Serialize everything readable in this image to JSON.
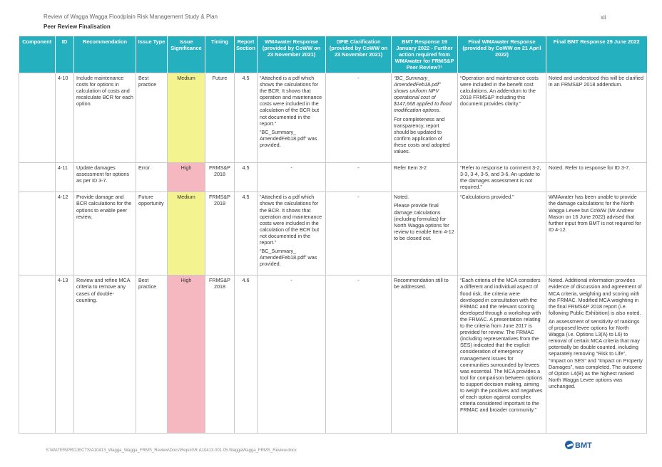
{
  "header": {
    "title": "Review of Wagga Wagga Floodplain Risk Management Study & Plan",
    "subtitle": "Peer Review Finalisation",
    "page_number": "xii"
  },
  "columns": [
    "Component",
    "ID",
    "Recommendation",
    "Issue Type",
    "Issue Significance",
    "Timing",
    "Report Section",
    "WMAwater Response (provided by CoWW on 23 November 2021)",
    "DPIE Clarification (provided by CoWW on 23 November 2021)",
    "BMT Response 19 January 2022 - Further action required from WMAwater for FRMS&P Peer Review?¹",
    "Final WMAwater Response (provided by CoWW on 21 April 2022)",
    "Final BMT Response 29 June 2022"
  ],
  "rows": [
    {
      "component": "",
      "id": "4-10",
      "recommendation": "Include maintenance costs for options in calculation of costs and recalculate BCR for each option.",
      "issue_type": "Best practice",
      "significance": "Medium",
      "timing": "Future",
      "section": "4.5",
      "wma_1": "“Attached is a pdf which shows the calculations for the BCR. It shows that operation and maintenance costs were included in the calculation of the BCR but not documented in the report.”",
      "wma_2": "“BC_Summary_ AmendedFeb18.pdf” was provided.",
      "dpie": "-",
      "bmt_1": "“BC_Summary_ AmendedFeb18.pdf” shows uniform NPV operational cost of $147,668 applied to flood modification options.",
      "bmt_2": "For completeness and transparency, report should be updated to confirm application of these costs and adopted values.",
      "final_wma": "“Operation and maintenance costs were included in the benefit cost calculations. An addendum to the 2018 FRMS&P including this document provides clarity.”",
      "final_bmt_1": "Noted and understood this will be clarified in an FRMS&P 2018 addendum.",
      "final_bmt_2": ""
    },
    {
      "component": "",
      "id": "4-11",
      "recommendation": "Update damages assessment for options as per ID 3-7.",
      "issue_type": "Error",
      "significance": "High",
      "timing": "FRMS&P 2018",
      "section": "4.5",
      "wma_1": "-",
      "wma_2": "",
      "dpie": "-",
      "bmt_1": "Refer Item 3-2",
      "bmt_2": "",
      "final_wma": "“Refer to response to comment 3-2, 3-3, 3-4, 3-5, and 3-6. An update to the damages assessment is not required.”",
      "final_bmt_1": "Noted. Refer to response for ID 3-7.",
      "final_bmt_2": ""
    },
    {
      "component": "",
      "id": "4-12",
      "recommendation": "Provide damage and BCR calculations for the options to enable peer review.",
      "issue_type": "Future opportunity",
      "significance": "Medium",
      "timing": "FRMS&P 2018",
      "section": "4.5",
      "wma_1": "“Attached is a pdf which shows the calculations for the BCR. It shows that operation and maintenance costs were included in the calculation of the BCR but not documented in the report.”",
      "wma_2": "“BC_Summary_ AmendedFeb18.pdf” was provided.",
      "dpie": "-",
      "bmt_1": "Noted.",
      "bmt_2": "Please provide final damage calculations (including formulas) for North Wagga options for review to enable Item 4-12 to be closed out.",
      "final_wma": "“Calculations provided.”",
      "final_bmt_1": "WMAwater has been unable to provide the damage calculations for the North Wagga Levee but CoWW (Mr Andrew Mason on 16 June 2022) advised that further input from BMT is not required for ID 4-12.",
      "final_bmt_2": ""
    },
    {
      "component": "",
      "id": "4-13",
      "recommendation": "Review and refine MCA criteria to remove any cases of double-counting.",
      "issue_type": "Best practice",
      "significance": "High",
      "timing": "FRMS&P 2018",
      "section": "4.6",
      "wma_1": "-",
      "wma_2": "",
      "dpie": "-",
      "bmt_1": "Recommendation still to be addressed.",
      "bmt_2": "",
      "final_wma": "“Each criteria of the MCA considers a different and individual aspect of flood risk, the criteria were developed in consultation with the FRMAC and the relevant scoring developed through a workshop with the FRMAC. A presentation relating to the criteria from June 2017 is provided for review. The FRMAC (including representatives from the SES) indicated that the explicit consideration of emergency management issues for communities surrounded by levees was essential. The MCA provides a tool for comparison between options to support decision making, aiming to weigh the positives and negatives of each option against complex criteria considered important to the FRMAC and broader community.”",
      "final_bmt_1": "Noted. Additional information provides evidence of discussion and agreement of MCA criteria, weighting and scoring with the FRMAC. Modified MCA weighting in the final FRMS&P 2018 report (i.e. following Public Exhibition) is also noted.",
      "final_bmt_2": "An assessment of sensitivity of rankings of proposed levee options for North Wagga (i.e. Options L3(A) to L6) to removal of certain MCA criteria that may potentially be double counted, including separately removing “Risk to Life”, “Impact on SES” and “Impact on Property Damages”, was completed. The outcome of Option L4(B) as the highest ranked North Wagga Levee options was unchanged."
    }
  ],
  "footer": {
    "path": "S:\\WATER\\PROJECTS\\A10413_Wagga_Wagga_FRMS_Review\\Docs\\Report\\R.A10413.001.05.WaggaWagga_FRMS_Review.docx",
    "logo_text": "BMT"
  },
  "colors": {
    "header_teal": "#25b0c0",
    "medium_yellow": "#f3f390",
    "high_pink": "#f6b8c0",
    "logo_blue": "#1f5fa8"
  }
}
